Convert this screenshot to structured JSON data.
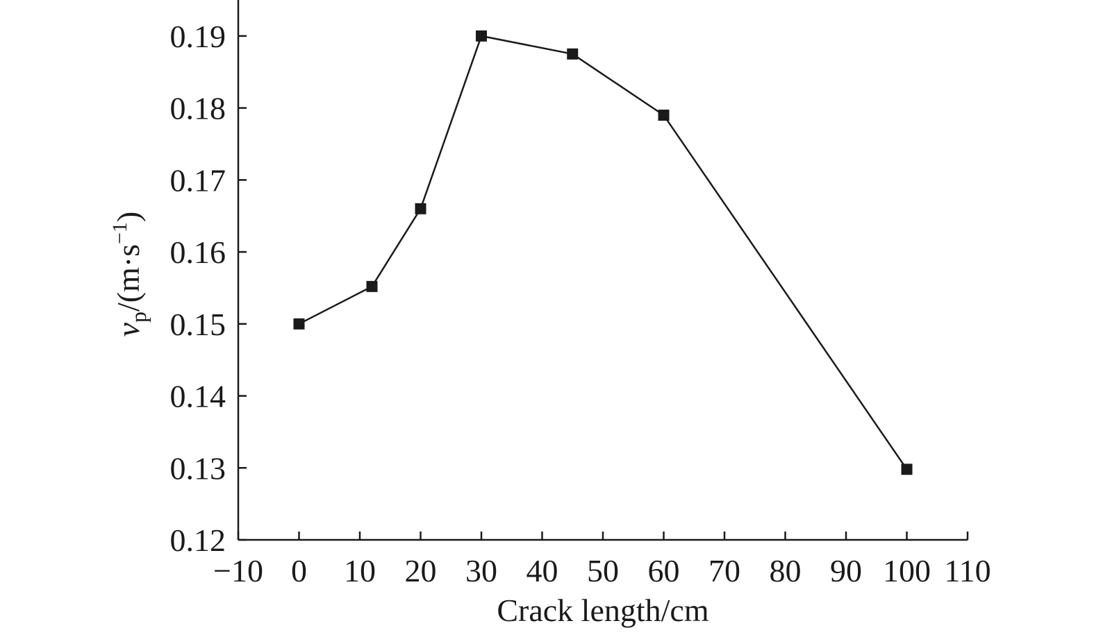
{
  "chart_data": {
    "type": "line",
    "xlabel": "Crack length/cm",
    "ylabel": {
      "symbol": "v",
      "subscript": "p",
      "unit_open": "/(m·s",
      "unit_exp": "−1",
      "unit_close": ")"
    },
    "xlim": [
      -10,
      110
    ],
    "ylim": [
      0.12,
      0.195
    ],
    "xticks": [
      {
        "value": -10,
        "label": "−10"
      },
      {
        "value": 0,
        "label": "0"
      },
      {
        "value": 10,
        "label": "10"
      },
      {
        "value": 20,
        "label": "20"
      },
      {
        "value": 30,
        "label": "30"
      },
      {
        "value": 40,
        "label": "40"
      },
      {
        "value": 50,
        "label": "50"
      },
      {
        "value": 60,
        "label": "60"
      },
      {
        "value": 70,
        "label": "70"
      },
      {
        "value": 80,
        "label": "80"
      },
      {
        "value": 90,
        "label": "90"
      },
      {
        "value": 100,
        "label": "100"
      },
      {
        "value": 110,
        "label": "110"
      }
    ],
    "yticks": [
      {
        "value": 0.12,
        "label": "0.12"
      },
      {
        "value": 0.13,
        "label": "0.13"
      },
      {
        "value": 0.14,
        "label": "0.14"
      },
      {
        "value": 0.15,
        "label": "0.15"
      },
      {
        "value": 0.16,
        "label": "0.16"
      },
      {
        "value": 0.17,
        "label": "0.17"
      },
      {
        "value": 0.18,
        "label": "0.18"
      },
      {
        "value": 0.19,
        "label": "0.19"
      }
    ],
    "grid": false,
    "series": [
      {
        "marker": "square",
        "color": "#1a1a1a",
        "points": [
          {
            "x": 0,
            "y": 0.15
          },
          {
            "x": 12,
            "y": 0.1552
          },
          {
            "x": 20,
            "y": 0.166
          },
          {
            "x": 30,
            "y": 0.19
          },
          {
            "x": 45,
            "y": 0.1875
          },
          {
            "x": 60,
            "y": 0.179
          },
          {
            "x": 100,
            "y": 0.1298
          }
        ]
      }
    ]
  }
}
